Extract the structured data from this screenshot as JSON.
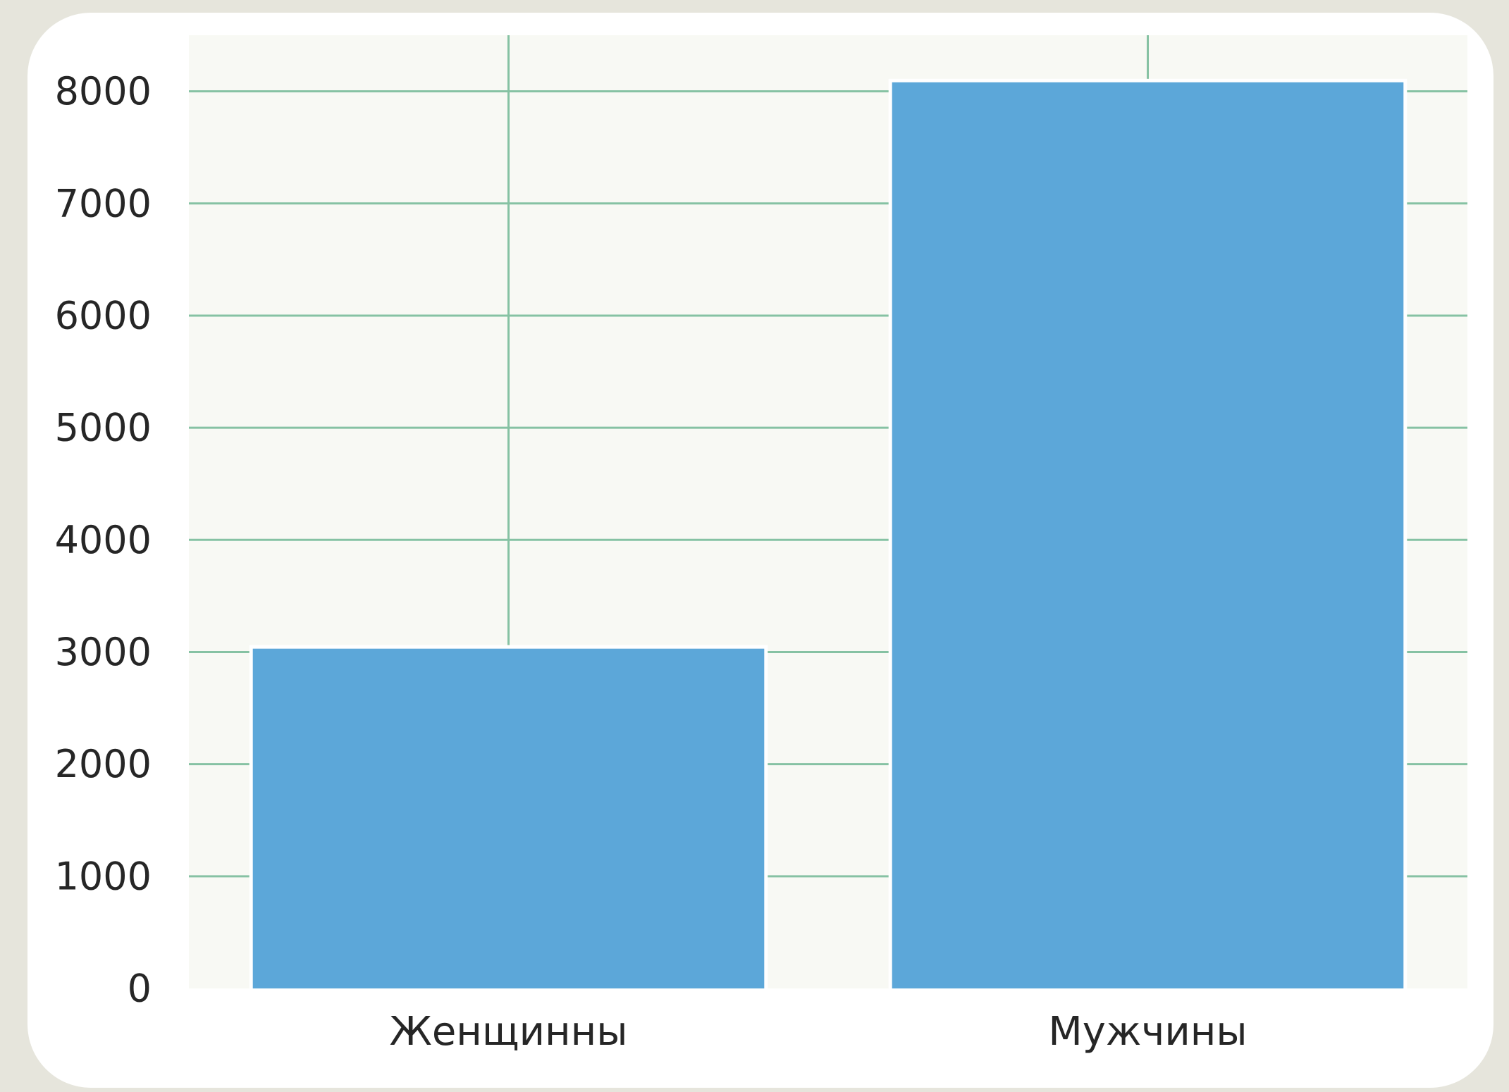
{
  "chart_data": {
    "type": "bar",
    "categories": [
      "Женщинны",
      "Мужчины"
    ],
    "values": [
      3030,
      8080
    ],
    "title": "",
    "xlabel": "",
    "ylabel": "",
    "ylim": [
      0,
      8500
    ],
    "yticks": [
      0,
      1000,
      2000,
      3000,
      4000,
      5000,
      6000,
      7000,
      8000
    ],
    "ytick_labels": [
      "0",
      "1000",
      "2000",
      "3000",
      "4000",
      "5000",
      "6000",
      "7000",
      "8000"
    ],
    "grid": true,
    "legend": "none",
    "bar_color": "#5ca7d9",
    "grid_color": "#86c2a3",
    "plot_background": "#f8f9f4"
  }
}
